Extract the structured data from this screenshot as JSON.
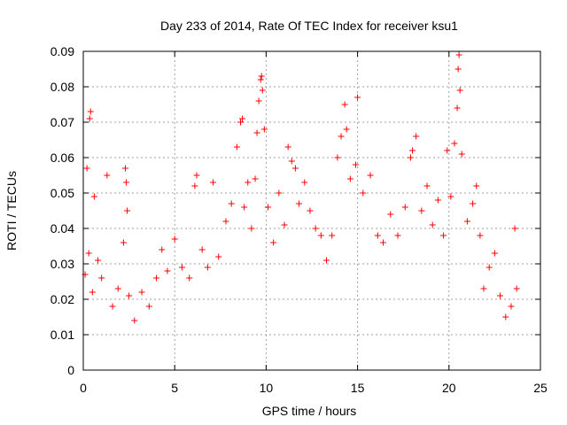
{
  "chart_data": {
    "type": "scatter",
    "title": "Day 233 of 2014, Rate Of TEC Index for receiver ksu1",
    "xlabel": "GPS time / hours",
    "ylabel": "ROTI / TECUs",
    "xlim": [
      0,
      25
    ],
    "ylim": [
      0,
      0.09
    ],
    "x_ticks": [
      0,
      5,
      10,
      15,
      20,
      25
    ],
    "y_ticks": [
      0,
      0.01,
      0.02,
      0.03,
      0.04,
      0.05,
      0.06,
      0.07,
      0.08,
      0.09
    ],
    "x_tick_labels": [
      "0",
      "5",
      "10",
      "15",
      "20",
      "25"
    ],
    "y_tick_labels": [
      "0",
      "0.01",
      "0.02",
      "0.03",
      "0.04",
      "0.05",
      "0.06",
      "0.07",
      "0.08",
      "0.09"
    ],
    "grid": true,
    "marker": "+",
    "marker_color": "#ff0000",
    "series": [
      {
        "name": "ROTI",
        "x": [
          0.1,
          0.2,
          0.3,
          0.35,
          0.4,
          0.5,
          0.6,
          0.8,
          1.0,
          1.3,
          1.6,
          1.9,
          2.2,
          2.3,
          2.35,
          2.4,
          2.5,
          2.8,
          3.2,
          3.6,
          4.0,
          4.3,
          4.6,
          5.0,
          5.4,
          5.8,
          6.1,
          6.2,
          6.5,
          6.8,
          7.1,
          7.4,
          7.8,
          8.1,
          8.4,
          8.6,
          8.7,
          8.8,
          9.0,
          9.2,
          9.4,
          9.5,
          9.6,
          9.7,
          9.75,
          9.8,
          9.9,
          10.1,
          10.4,
          10.7,
          11.0,
          11.2,
          11.4,
          11.6,
          11.8,
          12.1,
          12.4,
          12.7,
          13.0,
          13.3,
          13.6,
          13.9,
          14.1,
          14.3,
          14.4,
          14.6,
          14.9,
          15.0,
          15.3,
          15.7,
          16.1,
          16.4,
          16.8,
          17.2,
          17.6,
          17.9,
          18.0,
          18.2,
          18.5,
          18.8,
          19.1,
          19.4,
          19.7,
          19.9,
          20.1,
          20.3,
          20.45,
          20.5,
          20.55,
          20.6,
          20.7,
          21.0,
          21.3,
          21.5,
          21.7,
          21.9,
          22.2,
          22.5,
          22.8,
          23.1,
          23.4,
          23.6,
          23.7
        ],
        "y": [
          0.027,
          0.057,
          0.033,
          0.071,
          0.073,
          0.022,
          0.049,
          0.031,
          0.026,
          0.055,
          0.018,
          0.023,
          0.036,
          0.057,
          0.053,
          0.045,
          0.021,
          0.014,
          0.022,
          0.018,
          0.026,
          0.034,
          0.028,
          0.037,
          0.029,
          0.026,
          0.052,
          0.055,
          0.034,
          0.029,
          0.053,
          0.032,
          0.042,
          0.047,
          0.063,
          0.07,
          0.071,
          0.046,
          0.053,
          0.04,
          0.054,
          0.067,
          0.076,
          0.082,
          0.083,
          0.079,
          0.068,
          0.046,
          0.036,
          0.05,
          0.041,
          0.063,
          0.059,
          0.057,
          0.047,
          0.053,
          0.045,
          0.04,
          0.038,
          0.031,
          0.038,
          0.06,
          0.066,
          0.075,
          0.068,
          0.054,
          0.058,
          0.077,
          0.05,
          0.055,
          0.038,
          0.036,
          0.044,
          0.038,
          0.046,
          0.06,
          0.062,
          0.066,
          0.045,
          0.052,
          0.041,
          0.048,
          0.038,
          0.062,
          0.049,
          0.064,
          0.074,
          0.085,
          0.089,
          0.079,
          0.061,
          0.042,
          0.047,
          0.052,
          0.038,
          0.023,
          0.029,
          0.033,
          0.021,
          0.015,
          0.018,
          0.04,
          0.023
        ]
      }
    ]
  }
}
